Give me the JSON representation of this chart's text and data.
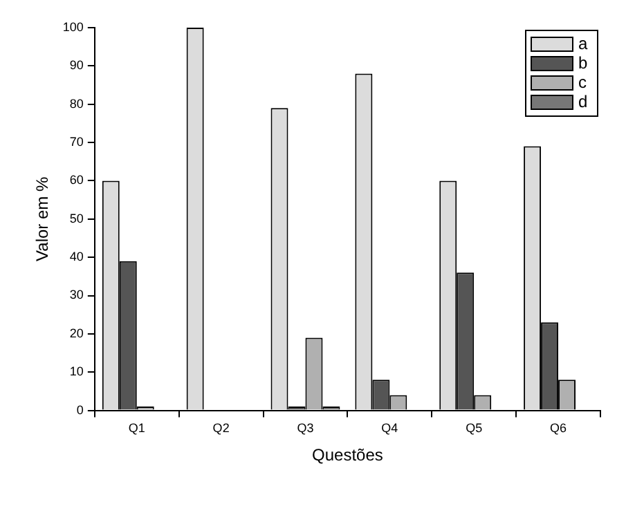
{
  "chart_data": {
    "type": "bar",
    "xlabel": "Questões",
    "ylabel": "Valor em %",
    "categories": [
      "Q1",
      "Q2",
      "Q3",
      "Q4",
      "Q5",
      "Q6"
    ],
    "series": [
      {
        "name": "a",
        "color": "#dcdcdc",
        "values": [
          60,
          100,
          79,
          88,
          60,
          69
        ]
      },
      {
        "name": "b",
        "color": "#555555",
        "values": [
          39,
          0,
          1,
          8,
          36,
          23
        ]
      },
      {
        "name": "c",
        "color": "#b0b0b0",
        "values": [
          1,
          0,
          19,
          4,
          4,
          8
        ]
      },
      {
        "name": "d",
        "color": "#777777",
        "values": [
          0,
          0,
          1,
          0,
          0,
          0
        ]
      }
    ],
    "ylim": [
      0,
      100
    ],
    "yticks": [
      0,
      10,
      20,
      30,
      40,
      50,
      60,
      70,
      80,
      90,
      100
    ],
    "grid": false,
    "legend": "top right"
  }
}
